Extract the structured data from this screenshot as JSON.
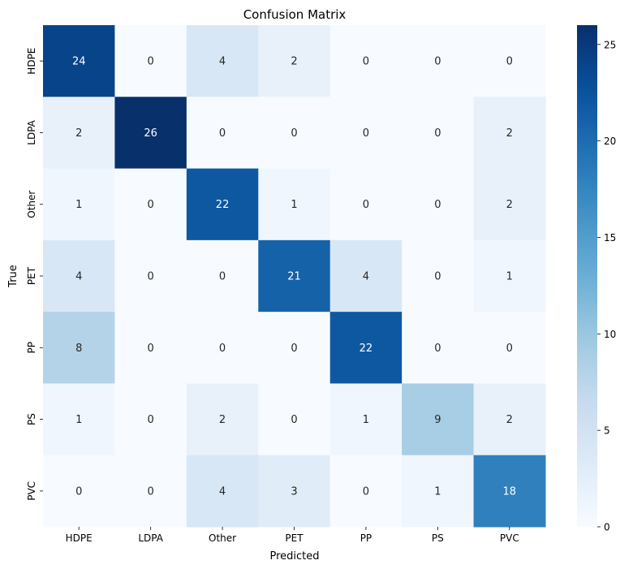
{
  "chart_data": {
    "type": "heatmap",
    "title": "Confusion Matrix",
    "xlabel": "Predicted",
    "ylabel": "True",
    "x_categories": [
      "HDPE",
      "LDPA",
      "Other",
      "PET",
      "PP",
      "PS",
      "PVC"
    ],
    "y_categories": [
      "HDPE",
      "LDPA",
      "Other",
      "PET",
      "PP",
      "PS",
      "PVC"
    ],
    "values": [
      [
        24,
        0,
        4,
        2,
        0,
        0,
        0
      ],
      [
        2,
        26,
        0,
        0,
        0,
        0,
        2
      ],
      [
        1,
        0,
        22,
        1,
        0,
        0,
        2
      ],
      [
        4,
        0,
        0,
        21,
        4,
        0,
        1
      ],
      [
        8,
        0,
        0,
        0,
        22,
        0,
        0
      ],
      [
        1,
        0,
        2,
        0,
        1,
        9,
        2
      ],
      [
        0,
        0,
        4,
        3,
        0,
        1,
        18
      ]
    ],
    "colormap": "Blues",
    "colorbar": {
      "vmin": 0,
      "vmax": 26,
      "ticks": [
        0,
        5,
        10,
        15,
        20,
        25
      ],
      "tick_labels": [
        "0",
        "5",
        "10",
        "15",
        "20",
        "25"
      ]
    },
    "annotations": true
  }
}
